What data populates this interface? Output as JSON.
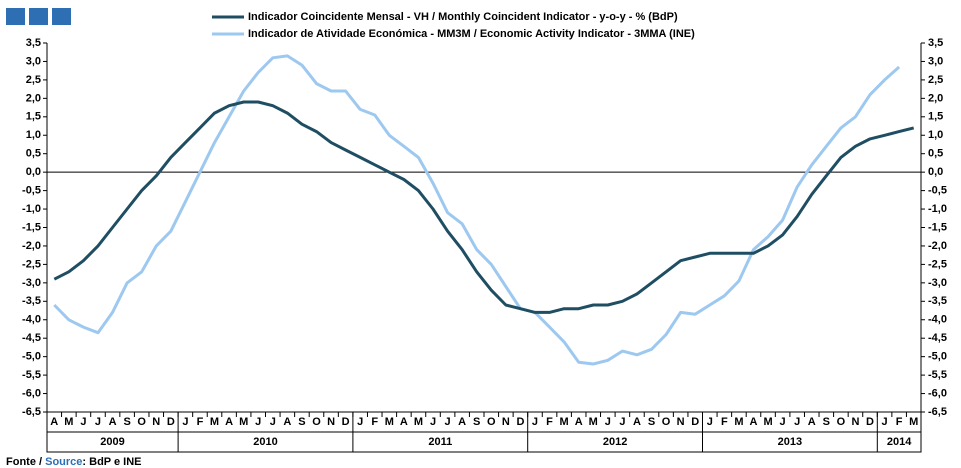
{
  "chart_data": {
    "type": "line",
    "categories": [
      "A",
      "M",
      "J",
      "J",
      "A",
      "S",
      "O",
      "N",
      "D",
      "J",
      "F",
      "M",
      "A",
      "M",
      "J",
      "J",
      "A",
      "S",
      "O",
      "N",
      "D",
      "J",
      "F",
      "M",
      "A",
      "M",
      "J",
      "J",
      "A",
      "S",
      "O",
      "N",
      "D",
      "J",
      "F",
      "M",
      "A",
      "M",
      "J",
      "J",
      "A",
      "S",
      "O",
      "N",
      "D",
      "J",
      "F",
      "M",
      "A",
      "M",
      "J",
      "J",
      "A",
      "S",
      "O",
      "N",
      "D",
      "J",
      "F",
      "M"
    ],
    "years": [
      "2009",
      "2010",
      "2011",
      "2012",
      "2013",
      "2014"
    ],
    "series": [
      {
        "name": "Indicador Coincidente Mensal - VH / Monthly Coincident Indicator - y-o-y - % (BdP)",
        "color": "#1f4e63",
        "values": [
          -2.9,
          -2.7,
          -2.4,
          -2.0,
          -1.5,
          -1.0,
          -0.5,
          -0.1,
          0.4,
          0.8,
          1.2,
          1.6,
          1.8,
          1.9,
          1.9,
          1.8,
          1.6,
          1.3,
          1.1,
          0.8,
          0.6,
          0.4,
          0.2,
          0.0,
          -0.2,
          -0.5,
          -1.0,
          -1.6,
          -2.1,
          -2.7,
          -3.2,
          -3.6,
          -3.7,
          -3.8,
          -3.8,
          -3.7,
          -3.7,
          -3.6,
          -3.6,
          -3.5,
          -3.3,
          -3.0,
          -2.7,
          -2.4,
          -2.3,
          -2.2,
          -2.2,
          -2.2,
          -2.2,
          -2.0,
          -1.7,
          -1.2,
          -0.6,
          -0.1,
          0.4,
          0.7,
          0.9,
          1.0,
          1.1,
          1.2
        ]
      },
      {
        "name": "Indicador de Atividade Económica - MM3M / Economic Activity Indicator - 3MMA (INE)",
        "color": "#9dc8f0",
        "values": [
          -3.6,
          -4.0,
          -4.2,
          -4.35,
          -3.8,
          -3.0,
          -2.7,
          -2.0,
          -1.6,
          -0.8,
          0.0,
          0.8,
          1.5,
          2.2,
          2.7,
          3.1,
          3.15,
          2.9,
          2.4,
          2.2,
          2.2,
          1.7,
          1.55,
          1.0,
          0.7,
          0.4,
          -0.3,
          -1.1,
          -1.4,
          -2.1,
          -2.5,
          -3.1,
          -3.7,
          -3.8,
          -4.2,
          -4.6,
          -5.15,
          -5.2,
          -5.1,
          -4.85,
          -4.95,
          -4.8,
          -4.4,
          -3.8,
          -3.85,
          -3.6,
          -3.35,
          -2.95,
          -2.1,
          -1.75,
          -1.3,
          -0.4,
          0.2,
          0.7,
          1.2,
          1.5,
          2.1,
          2.5,
          2.85,
          null
        ]
      }
    ],
    "ylim": [
      -6.5,
      3.5
    ],
    "yticks": [
      {
        "value": -6.5,
        "label": "-6,5"
      },
      {
        "value": -6,
        "label": "-6,0"
      },
      {
        "value": -5.5,
        "label": "-5,5"
      },
      {
        "value": -5,
        "label": "-5,0"
      },
      {
        "value": -4.5,
        "label": "-4,5"
      },
      {
        "value": -4,
        "label": "-4,0"
      },
      {
        "value": -3.5,
        "label": "-3,5"
      },
      {
        "value": -3,
        "label": "-3,0"
      },
      {
        "value": -2.5,
        "label": "-2,5"
      },
      {
        "value": -2,
        "label": "-2,0"
      },
      {
        "value": -1.5,
        "label": "-1,5"
      },
      {
        "value": -1,
        "label": "-1,0"
      },
      {
        "value": -0.5,
        "label": "-0,5"
      },
      {
        "value": 0,
        "label": "0,0"
      },
      {
        "value": 0.5,
        "label": "0,5"
      },
      {
        "value": 1,
        "label": "1,0"
      },
      {
        "value": 1.5,
        "label": "1,5"
      },
      {
        "value": 2,
        "label": "2,0"
      },
      {
        "value": 2.5,
        "label": "2,5"
      },
      {
        "value": 3,
        "label": "3,0"
      },
      {
        "value": 3.5,
        "label": "3,5"
      }
    ],
    "y2lim": [
      -6.5,
      3.5
    ],
    "y2ticks": [
      {
        "value": -6.5,
        "label": "-6,5"
      },
      {
        "value": -6,
        "label": "-6,0"
      },
      {
        "value": -5.5,
        "label": "-5,5"
      },
      {
        "value": -5,
        "label": "-5,0"
      },
      {
        "value": -4.5,
        "label": "-4,5"
      },
      {
        "value": -4,
        "label": "-4,0"
      },
      {
        "value": -3.5,
        "label": "-3,5"
      },
      {
        "value": -3,
        "label": "-3,0"
      },
      {
        "value": -2.5,
        "label": "-2,5"
      },
      {
        "value": -2,
        "label": "-2,0"
      },
      {
        "value": -1.5,
        "label": "-1,5"
      },
      {
        "value": -1,
        "label": "-1,0"
      },
      {
        "value": -0.5,
        "label": "-0,5"
      },
      {
        "value": 0,
        "label": "0,0"
      },
      {
        "value": 0.5,
        "label": "0,5"
      },
      {
        "value": 1,
        "label": "1,0"
      },
      {
        "value": 1.5,
        "label": "1,5"
      },
      {
        "value": 2,
        "label": "2,0"
      },
      {
        "value": 2.5,
        "label": "2,5"
      },
      {
        "value": 3,
        "label": "3,0"
      },
      {
        "value": 3.5,
        "label": "3,5"
      }
    ],
    "source": {
      "prefix": "Fonte / ",
      "label": "Source",
      "suffix": ": BdP e INE"
    }
  }
}
